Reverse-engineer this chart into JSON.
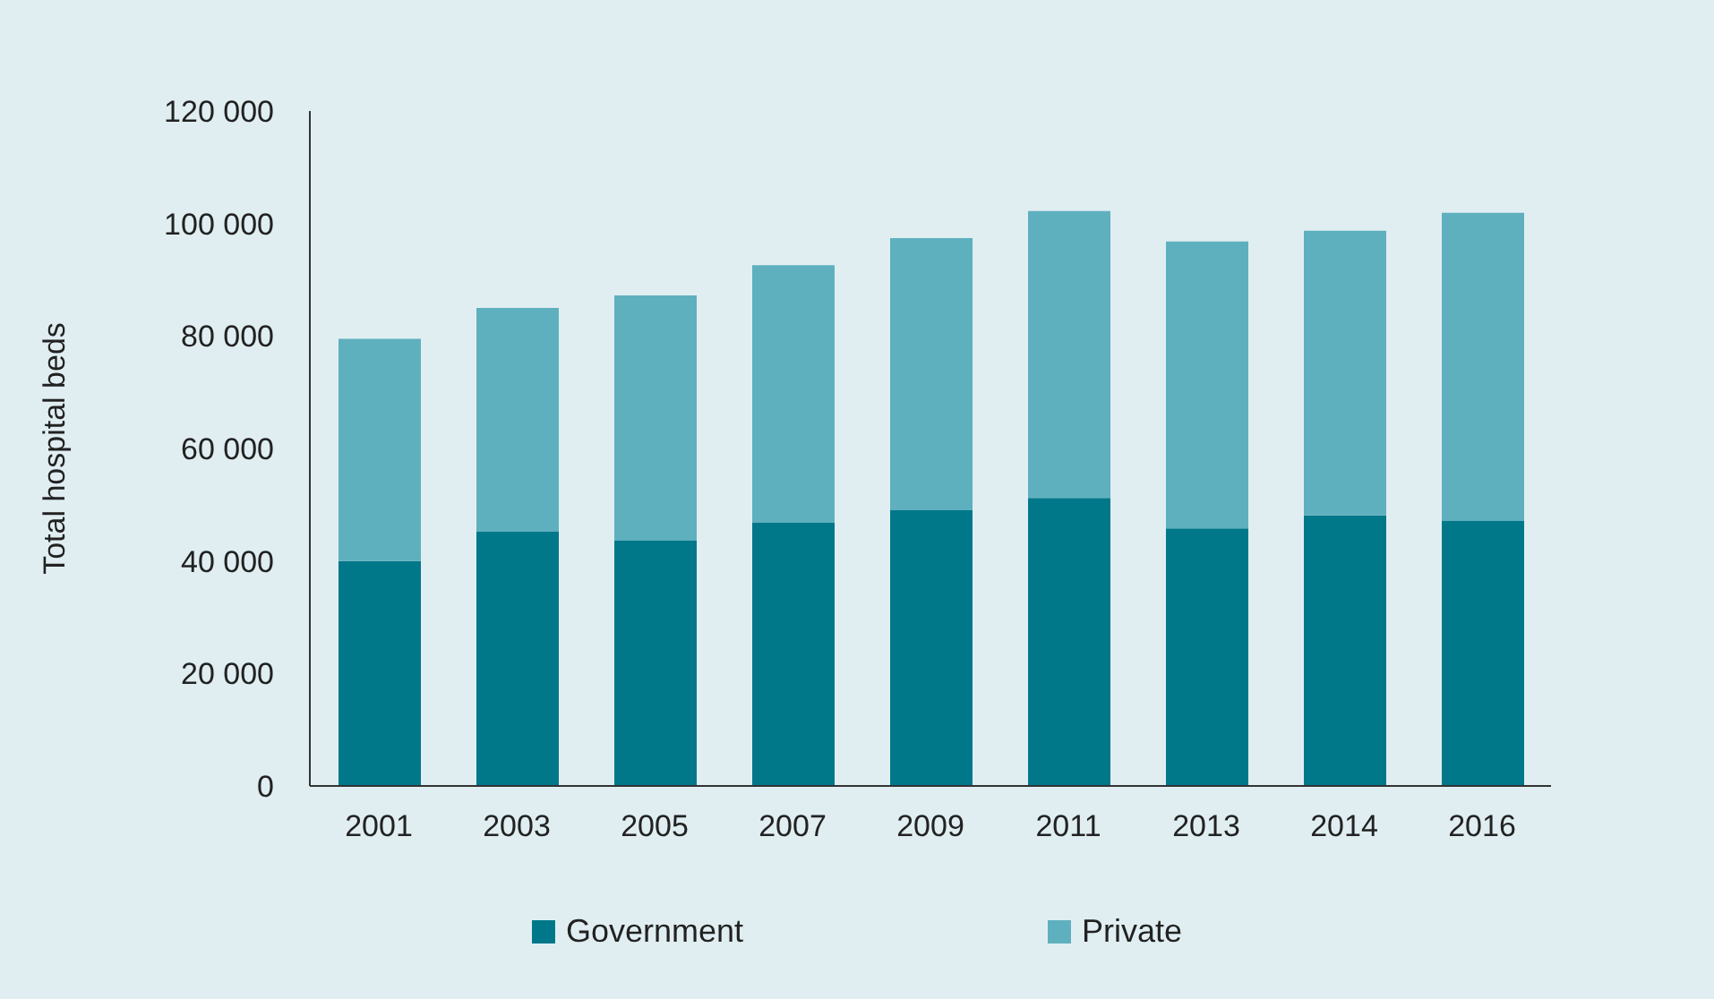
{
  "chart_data": {
    "type": "bar",
    "stacked": true,
    "ylabel": "Total hospital beds",
    "categories": [
      "2001",
      "2003",
      "2005",
      "2007",
      "2009",
      "2011",
      "2013",
      "2014",
      "2016"
    ],
    "series": [
      {
        "name": "Government",
        "color": "#00788a",
        "values": [
          40000,
          45200,
          43600,
          46800,
          49000,
          51200,
          45800,
          48100,
          47100
        ]
      },
      {
        "name": "Private",
        "color": "#5fb0be",
        "values": [
          39500,
          39800,
          43600,
          45800,
          48400,
          51000,
          51000,
          50600,
          54800
        ]
      }
    ],
    "ylim": [
      0,
      120000
    ],
    "yticks": [
      0,
      20000,
      40000,
      60000,
      80000,
      100000,
      120000
    ],
    "grid": false,
    "legend": "bottom"
  }
}
